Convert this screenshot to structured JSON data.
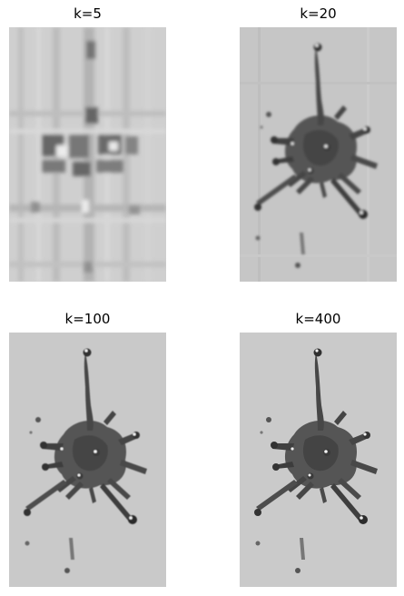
{
  "figure": {
    "panels": [
      {
        "title": "k=5",
        "quality": "very-blurry"
      },
      {
        "title": "k=20",
        "quality": "blurry"
      },
      {
        "title": "k=100",
        "quality": "sharp"
      },
      {
        "title": "k=400",
        "quality": "sharp"
      }
    ]
  },
  "colors": {
    "background": "#c9c9c9",
    "splash": "#3c3c3c",
    "highlight": "#f2f2f2"
  }
}
